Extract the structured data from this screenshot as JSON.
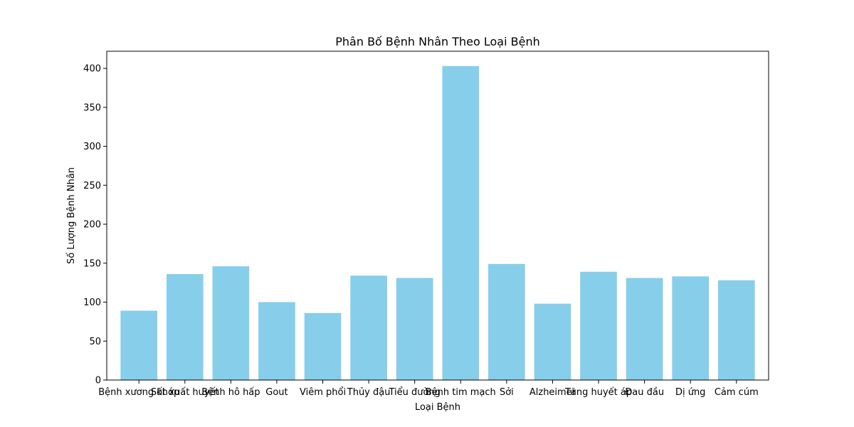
{
  "chart_data": {
    "type": "bar",
    "title": "Phân Bố Bệnh Nhân Theo Loại Bệnh",
    "xlabel": "Loại Bệnh",
    "ylabel": "Số Lượng Bệnh Nhân",
    "categories": [
      "Bệnh xương khớp",
      "Sốt xuất huyết",
      "Bệnh hô hấp",
      "Gout",
      "Viêm phổi",
      "Thủy đậu",
      "Tiểu đường",
      "Bệnh tim mạch",
      "Sởi",
      "Alzheimer",
      "Tăng huyết áp",
      "Đau đầu",
      "Dị ứng",
      "Cảm cúm"
    ],
    "values": [
      89,
      136,
      146,
      100,
      86,
      134,
      131,
      403,
      149,
      98,
      139,
      131,
      133,
      128
    ],
    "ylim": [
      0,
      422
    ],
    "yticks": [
      0,
      50,
      100,
      150,
      200,
      250,
      300,
      350,
      400
    ],
    "bar_color": "#87ceeb",
    "grid": false,
    "legend": "none"
  }
}
